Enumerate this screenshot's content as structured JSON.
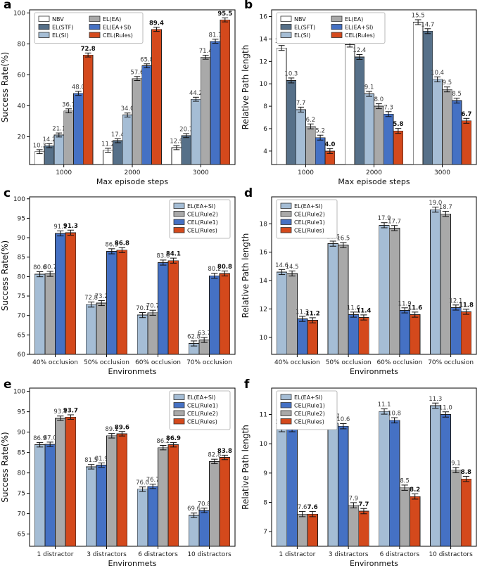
{
  "figure": {
    "background": "#ffffff",
    "bar_edge_color": "#1f1f1f",
    "value_label_color": "#3a3a3a",
    "bold_value_label_color": "#111111",
    "axis_color": "#000000"
  },
  "chart_data": [
    {
      "id": "a",
      "panel_label": "a",
      "type": "bar",
      "xlabel": "Max episode steps",
      "ylabel": "Success Rate(%)",
      "categories": [
        "1000",
        "2000",
        "3000"
      ],
      "series": [
        {
          "name": "NBV",
          "color": "#ffffff",
          "values": [
            10.3,
            11.2,
            12.9
          ]
        },
        {
          "name": "EL(STF)",
          "color": "#567089",
          "values": [
            14.2,
            17.4,
            20.7
          ]
        },
        {
          "name": "EL(SI)",
          "color": "#a5bdd5",
          "values": [
            21.1,
            34.0,
            44.2
          ]
        },
        {
          "name": "EL(EA)",
          "color": "#a9a9a9",
          "values": [
            36.7,
            57.6,
            71.4
          ]
        },
        {
          "name": "EL(EA+SI)",
          "color": "#4571c4",
          "values": [
            48.0,
            65.8,
            81.7
          ]
        },
        {
          "name": "CEL(Rules)",
          "color": "#d4491c",
          "values": [
            72.8,
            89.4,
            95.5
          ],
          "bold_labels": true
        }
      ],
      "ylim": [
        2,
        102
      ],
      "yticks": [
        20,
        40,
        60,
        80,
        100
      ],
      "error_bar": 1.3,
      "legend": {
        "position": "top-left",
        "cols": 2
      }
    },
    {
      "id": "b",
      "panel_label": "b",
      "type": "bar",
      "xlabel": "Max episode steps",
      "ylabel": "Relative Path length",
      "categories": [
        "1000",
        "2000",
        "3000"
      ],
      "series": [
        {
          "name": "NBV",
          "color": "#ffffff",
          "values": [
            13.2,
            13.5,
            15.5
          ]
        },
        {
          "name": "EL(SFT)",
          "color": "#567089",
          "values": [
            10.3,
            12.4,
            14.7
          ]
        },
        {
          "name": "EL(SI)",
          "color": "#a5bdd5",
          "values": [
            7.7,
            9.1,
            10.4
          ]
        },
        {
          "name": "EL(EA)",
          "color": "#a9a9a9",
          "values": [
            6.2,
            8.0,
            9.5
          ]
        },
        {
          "name": "EL(EA+SI)",
          "color": "#4571c4",
          "values": [
            5.2,
            7.3,
            8.5
          ]
        },
        {
          "name": "CEL(Rules)",
          "color": "#d4491c",
          "values": [
            4.0,
            5.8,
            6.7
          ],
          "bold_labels": true
        }
      ],
      "ylim": [
        2.8,
        16.6
      ],
      "yticks": [
        4,
        6,
        8,
        10,
        12,
        14,
        16
      ],
      "error_bar": 0.22,
      "legend": {
        "position": "top-left",
        "cols": 2
      }
    },
    {
      "id": "c",
      "panel_label": "c",
      "type": "bar",
      "xlabel": "Environmets",
      "ylabel": "Success Rate(%)",
      "categories": [
        "40% occlusion",
        "50% occlusion",
        "60% occlusion",
        "70% occlusion"
      ],
      "series": [
        {
          "name": "EL(EA+SI)",
          "color": "#a5bdd5",
          "values": [
            80.6,
            72.8,
            70.1,
            62.8
          ]
        },
        {
          "name": "CEL(Rule2)",
          "color": "#a9a9a9",
          "values": [
            80.7,
            73.2,
            70.7,
            63.7
          ]
        },
        {
          "name": "CEL(Rule1)",
          "color": "#4571c4",
          "values": [
            91.1,
            86.5,
            83.6,
            80.2
          ]
        },
        {
          "name": "CEL(Rules)",
          "color": "#d4491c",
          "values": [
            91.3,
            86.8,
            84.1,
            80.8
          ],
          "bold_labels": true
        }
      ],
      "ylim": [
        60,
        100.5
      ],
      "yticks": [
        60,
        65,
        70,
        75,
        80,
        85,
        90,
        95,
        100
      ],
      "error_bar": 0.65,
      "legend": {
        "position": "top-right",
        "cols": 1
      }
    },
    {
      "id": "d",
      "panel_label": "d",
      "type": "bar",
      "xlabel": "Environmets",
      "ylabel": "Relative Path length",
      "categories": [
        "40% occlusion",
        "50% occlusion",
        "60% occlusion",
        "70% occlusion"
      ],
      "series": [
        {
          "name": "EL(EA+SI)",
          "color": "#a5bdd5",
          "values": [
            14.6,
            16.6,
            17.9,
            19.0
          ]
        },
        {
          "name": "CEL(Rule2)",
          "color": "#a9a9a9",
          "values": [
            14.5,
            16.5,
            17.7,
            18.7
          ]
        },
        {
          "name": "CEL(Rule1)",
          "color": "#4571c4",
          "values": [
            11.3,
            11.6,
            11.9,
            12.1
          ]
        },
        {
          "name": "CEL(Rules)",
          "color": "#d4491c",
          "values": [
            11.2,
            11.4,
            11.6,
            11.8
          ],
          "bold_labels": true
        }
      ],
      "ylim": [
        8.8,
        19.9
      ],
      "yticks": [
        10,
        12,
        14,
        16,
        18
      ],
      "error_bar": 0.18,
      "legend": {
        "position": "top-left",
        "cols": 1
      }
    },
    {
      "id": "e",
      "panel_label": "e",
      "type": "bar",
      "xlabel": "Environmets",
      "ylabel": "Success Rate(%)",
      "categories": [
        "1 distractor",
        "3 distractors",
        "6 distractors",
        "10 distractors"
      ],
      "series": [
        {
          "name": "EL(EA+SI)",
          "color": "#a5bdd5",
          "values": [
            86.9,
            81.5,
            76.0,
            69.6
          ]
        },
        {
          "name": "CEL(Rule1)",
          "color": "#4571c4",
          "values": [
            87.0,
            81.9,
            76.7,
            70.8
          ]
        },
        {
          "name": "CEL(Rule2)",
          "color": "#a9a9a9",
          "values": [
            93.4,
            89.1,
            86.2,
            82.8
          ]
        },
        {
          "name": "CEL(Rules)",
          "color": "#d4491c",
          "values": [
            93.7,
            89.6,
            86.9,
            83.8
          ],
          "bold_labels": true
        }
      ],
      "ylim": [
        62,
        100.8
      ],
      "yticks": [
        65,
        70,
        75,
        80,
        85,
        90,
        95,
        100
      ],
      "error_bar": 0.55,
      "legend": {
        "position": "top-right",
        "cols": 1
      }
    },
    {
      "id": "f",
      "panel_label": "f",
      "type": "bar",
      "xlabel": "Environmets",
      "ylabel": "Relative Path length",
      "categories": [
        "1 distractor",
        "3 distractors",
        "6 distractors",
        "10 distractors"
      ],
      "series": [
        {
          "name": "EL(EA+SI)",
          "color": "#a5bdd5",
          "values": [
            10.5,
            10.7,
            11.1,
            11.3
          ]
        },
        {
          "name": "CEL(Rule1)",
          "color": "#4571c4",
          "values": [
            10.5,
            10.6,
            10.8,
            11.0
          ]
        },
        {
          "name": "CEL(Rule2)",
          "color": "#a9a9a9",
          "values": [
            7.6,
            7.9,
            8.5,
            9.1
          ]
        },
        {
          "name": "CEL(Rules)",
          "color": "#d4491c",
          "values": [
            7.6,
            7.7,
            8.2,
            8.8
          ],
          "bold_labels": true
        }
      ],
      "ylim": [
        6.5,
        11.9
      ],
      "yticks": [
        7,
        8,
        9,
        10,
        11
      ],
      "error_bar": 0.09,
      "legend": {
        "position": "top-left",
        "cols": 1
      }
    }
  ]
}
